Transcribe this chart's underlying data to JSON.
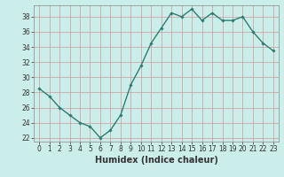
{
  "x": [
    0,
    1,
    2,
    3,
    4,
    5,
    6,
    7,
    8,
    9,
    10,
    11,
    12,
    13,
    14,
    15,
    16,
    17,
    18,
    19,
    20,
    21,
    22,
    23
  ],
  "y": [
    28.5,
    27.5,
    26,
    25,
    24,
    23.5,
    22,
    23,
    25,
    29,
    31.5,
    34.5,
    36.5,
    38.5,
    38,
    39,
    37.5,
    38.5,
    37.5,
    37.5,
    38,
    36,
    34.5,
    33.5
  ],
  "line_color": "#2e7d70",
  "marker": "D",
  "marker_size": 1.8,
  "bg_color": "#cceeea",
  "grid_color": "#aacccc",
  "xlabel": "Humidex (Indice chaleur)",
  "xlim": [
    -0.5,
    23.5
  ],
  "ylim": [
    21.5,
    39.5
  ],
  "yticks": [
    22,
    24,
    26,
    28,
    30,
    32,
    34,
    36,
    38
  ],
  "xticks": [
    0,
    1,
    2,
    3,
    4,
    5,
    6,
    7,
    8,
    9,
    10,
    11,
    12,
    13,
    14,
    15,
    16,
    17,
    18,
    19,
    20,
    21,
    22,
    23
  ],
  "xtick_labels": [
    "0",
    "1",
    "2",
    "3",
    "4",
    "5",
    "6",
    "7",
    "8",
    "9",
    "10",
    "11",
    "12",
    "13",
    "14",
    "15",
    "16",
    "17",
    "18",
    "19",
    "20",
    "21",
    "22",
    "23"
  ],
  "tick_color": "#333333",
  "xlabel_fontsize": 7,
  "tick_fontsize": 5.5,
  "linewidth": 1.0
}
